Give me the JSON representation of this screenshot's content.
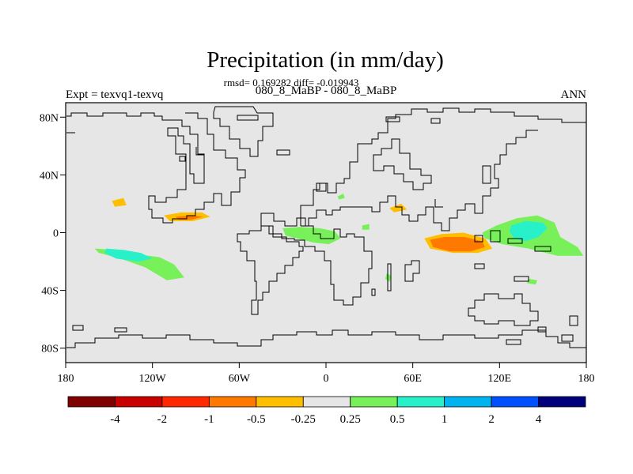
{
  "chart_data": {
    "type": "contour-map",
    "title": "Precipitation (in mm/day)",
    "stats_line": "rmsd= 0.169282 diff= -0.019943",
    "subtitle": "080_8_MaBP - 080_8_MaBP",
    "left_label": "Expt = texvq1-texvq",
    "right_label": "ANN",
    "x_ticks": [
      {
        "lon": -180,
        "label": "180"
      },
      {
        "lon": -120,
        "label": "120W"
      },
      {
        "lon": -60,
        "label": "60W"
      },
      {
        "lon": 0,
        "label": "0"
      },
      {
        "lon": 60,
        "label": "60E"
      },
      {
        "lon": 120,
        "label": "120E"
      },
      {
        "lon": 180,
        "label": "180"
      }
    ],
    "y_ticks": [
      {
        "lat": 80,
        "label": "80N"
      },
      {
        "lat": 40,
        "label": "40N"
      },
      {
        "lat": 0,
        "label": "0"
      },
      {
        "lat": -40,
        "label": "40S"
      },
      {
        "lat": -80,
        "label": "80S"
      }
    ],
    "xlim": [
      -180,
      180
    ],
    "ylim": [
      -90,
      90
    ],
    "colorbar": {
      "colors": [
        "#800000",
        "#c80000",
        "#ff2800",
        "#ff7800",
        "#ffbe00",
        "#e6e6e6",
        "#78f05a",
        "#28f0c8",
        "#00b4f0",
        "#0050ff",
        "#00007d"
      ],
      "labels": [
        "-4",
        "-2",
        "-1",
        "-0.5",
        "-0.25",
        "0.25",
        "0.5",
        "1",
        "2",
        "4"
      ]
    },
    "anomaly_regions": [
      {
        "value": -0.25,
        "points": [
          [
            -180,
            66
          ],
          [
            -168,
            68
          ],
          [
            -152,
            65
          ],
          [
            -138,
            60
          ],
          [
            -145,
            57
          ],
          [
            -165,
            59
          ],
          [
            -180,
            61
          ]
        ]
      },
      {
        "value": -0.25,
        "points": [
          [
            -180,
            17
          ],
          [
            -160,
            18
          ],
          [
            -150,
            30
          ],
          [
            -140,
            31
          ],
          [
            -132,
            24
          ],
          [
            -125,
            15
          ],
          [
            -110,
            13
          ],
          [
            -95,
            15
          ],
          [
            -80,
            16
          ],
          [
            -66,
            18
          ],
          [
            -60,
            22
          ],
          [
            -50,
            28
          ],
          [
            -40,
            29
          ],
          [
            -35,
            20
          ],
          [
            -30,
            14
          ],
          [
            -45,
            8
          ],
          [
            -60,
            5
          ],
          [
            -80,
            4
          ],
          [
            -100,
            5
          ],
          [
            -115,
            7
          ],
          [
            -130,
            8
          ],
          [
            -150,
            10
          ],
          [
            -170,
            9
          ],
          [
            -180,
            10
          ]
        ]
      },
      {
        "value": -0.25,
        "points": [
          [
            42,
            18
          ],
          [
            48,
            23
          ],
          [
            56,
            22
          ],
          [
            64,
            17
          ],
          [
            58,
            10
          ],
          [
            48,
            9
          ],
          [
            41,
            12
          ]
        ]
      },
      {
        "value": -0.25,
        "points": [
          [
            14,
            19
          ],
          [
            22,
            20
          ],
          [
            28,
            16
          ],
          [
            20,
            13
          ],
          [
            12,
            15
          ]
        ]
      },
      {
        "value": -0.25,
        "points": [
          [
            62,
            -2
          ],
          [
            75,
            1
          ],
          [
            92,
            2
          ],
          [
            108,
            -3
          ],
          [
            120,
            -9
          ],
          [
            125,
            -17
          ],
          [
            112,
            -22
          ],
          [
            92,
            -20
          ],
          [
            75,
            -16
          ],
          [
            65,
            -10
          ]
        ]
      },
      {
        "value": -0.25,
        "points": [
          [
            162,
            16
          ],
          [
            180,
            17
          ],
          [
            180,
            10
          ],
          [
            166,
            11
          ],
          [
            158,
            13
          ]
        ]
      },
      {
        "value": -0.25,
        "points": [
          [
            72,
            -42
          ],
          [
            80,
            -41
          ],
          [
            80,
            -44
          ],
          [
            72,
            -45
          ]
        ]
      },
      {
        "value": -0.25,
        "points": [
          [
            124,
            12
          ],
          [
            127,
            13
          ],
          [
            127,
            10
          ],
          [
            124,
            10
          ]
        ]
      },
      {
        "value": -0.5,
        "points": [
          [
            -148,
            22
          ],
          [
            -140,
            24
          ],
          [
            -138,
            19
          ],
          [
            -146,
            18
          ]
        ]
      },
      {
        "value": -0.5,
        "points": [
          [
            -112,
            12
          ],
          [
            -100,
            14
          ],
          [
            -86,
            14
          ],
          [
            -80,
            11
          ],
          [
            -92,
            8
          ],
          [
            -108,
            8
          ]
        ]
      },
      {
        "value": -0.5,
        "points": [
          [
            44,
            17
          ],
          [
            52,
            20
          ],
          [
            56,
            16
          ],
          [
            47,
            14
          ]
        ]
      },
      {
        "value": -0.5,
        "points": [
          [
            68,
            -4
          ],
          [
            80,
            -1
          ],
          [
            95,
            0
          ],
          [
            110,
            -4
          ],
          [
            115,
            -11
          ],
          [
            105,
            -14
          ],
          [
            88,
            -14
          ],
          [
            72,
            -11
          ]
        ]
      },
      {
        "value": -1,
        "points": [
          [
            -104,
            11
          ],
          [
            -92,
            12
          ],
          [
            -85,
            11
          ],
          [
            -93,
            9
          ],
          [
            -102,
            9
          ]
        ]
      },
      {
        "value": -1,
        "points": [
          [
            72,
            -5
          ],
          [
            82,
            -3
          ],
          [
            96,
            -3
          ],
          [
            108,
            -6
          ],
          [
            110,
            -10
          ],
          [
            100,
            -13
          ],
          [
            86,
            -13
          ],
          [
            74,
            -10
          ]
        ]
      },
      {
        "value": 0.25,
        "points": [
          [
            -160,
            -11
          ],
          [
            -145,
            -12
          ],
          [
            -130,
            -15
          ],
          [
            -115,
            -17
          ],
          [
            -105,
            -22
          ],
          [
            -98,
            -31
          ],
          [
            -110,
            -33
          ],
          [
            -125,
            -24
          ],
          [
            -142,
            -18
          ],
          [
            -157,
            -14
          ]
        ]
      },
      {
        "value": 0.25,
        "points": [
          [
            -30,
            3
          ],
          [
            -18,
            4
          ],
          [
            -4,
            3
          ],
          [
            6,
            1
          ],
          [
            10,
            -4
          ],
          [
            2,
            -8
          ],
          [
            -8,
            -7
          ],
          [
            -20,
            -4
          ],
          [
            -28,
            -2
          ]
        ]
      },
      {
        "value": 0.25,
        "points": [
          [
            108,
            0
          ],
          [
            118,
            5
          ],
          [
            132,
            10
          ],
          [
            146,
            12
          ],
          [
            158,
            7
          ],
          [
            162,
            -3
          ],
          [
            174,
            -10
          ],
          [
            178,
            -16
          ],
          [
            160,
            -16
          ],
          [
            140,
            -11
          ],
          [
            122,
            -8
          ],
          [
            110,
            -4
          ]
        ]
      },
      {
        "value": 0.25,
        "points": [
          [
            8,
            25
          ],
          [
            12,
            27
          ],
          [
            13,
            24
          ],
          [
            9,
            23
          ]
        ]
      },
      {
        "value": 0.25,
        "points": [
          [
            25,
            5
          ],
          [
            30,
            6
          ],
          [
            30,
            2
          ],
          [
            25,
            2
          ]
        ]
      },
      {
        "value": 0.25,
        "points": [
          [
            42,
            -28
          ],
          [
            45,
            -30
          ],
          [
            44,
            -34
          ],
          [
            41,
            -32
          ]
        ]
      },
      {
        "value": 0.25,
        "points": [
          [
            140,
            -32
          ],
          [
            146,
            -33
          ],
          [
            145,
            -36
          ],
          [
            139,
            -35
          ]
        ]
      },
      {
        "value": 0.5,
        "points": [
          [
            -152,
            -11
          ],
          [
            -140,
            -12
          ],
          [
            -128,
            -14
          ],
          [
            -120,
            -18
          ],
          [
            -130,
            -20
          ],
          [
            -145,
            -18
          ],
          [
            -153,
            -14
          ]
        ]
      },
      {
        "value": 0.5,
        "points": [
          [
            128,
            5
          ],
          [
            138,
            8
          ],
          [
            150,
            7
          ],
          [
            153,
            3
          ],
          [
            147,
            -3
          ],
          [
            138,
            -6
          ],
          [
            130,
            -4
          ],
          [
            127,
            1
          ]
        ]
      }
    ]
  }
}
